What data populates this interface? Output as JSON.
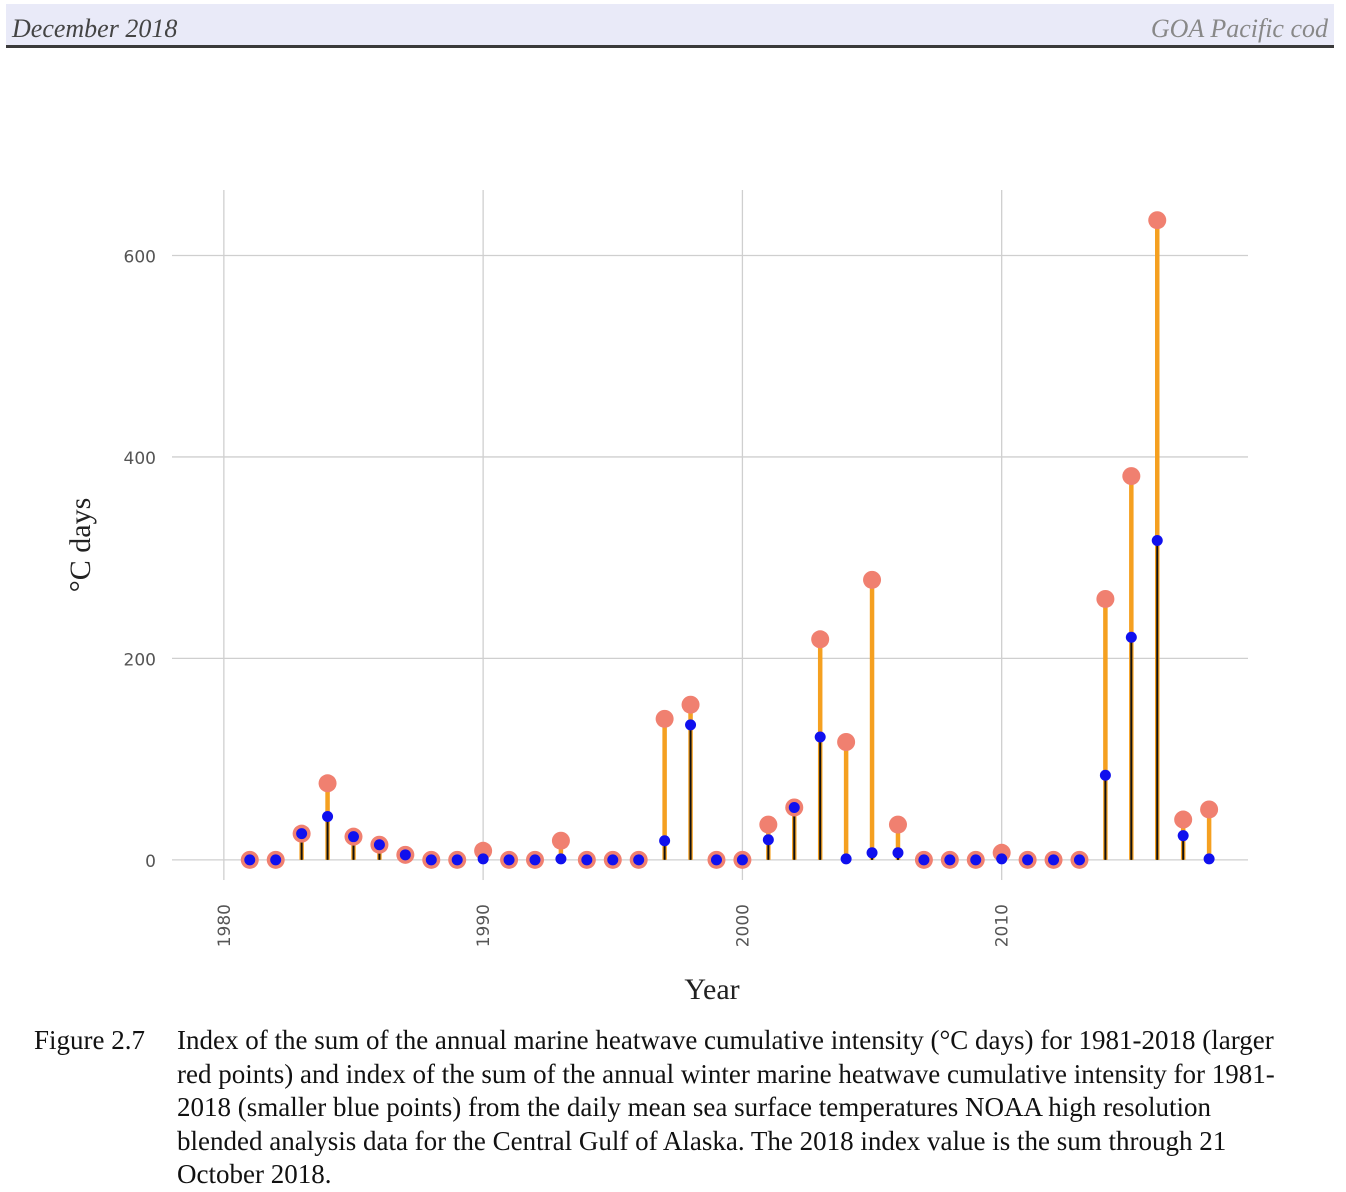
{
  "header": {
    "left": "December 2018",
    "right": "GOA Pacific cod"
  },
  "caption": {
    "label": "Figure 2.7",
    "text": "Index of the sum of the annual marine heatwave cumulative intensity (°C days) for 1981-2018 (larger red points) and index of the sum of the annual winter marine heatwave cumulative intensity for 1981-2018 (smaller blue points) from the daily mean sea surface temperatures NOAA high resolution blended analysis data for the Central Gulf of Alaska. The 2018 index value is the sum through 21 October 2018."
  },
  "chart_data": {
    "type": "lollipop",
    "xlabel": "Year",
    "ylabel": "°C days",
    "xlim": [
      1978,
      2019.5
    ],
    "ylim": [
      -20,
      665
    ],
    "x_ticks": [
      1980,
      1990,
      2000,
      2010
    ],
    "y_ticks": [
      0,
      200,
      400,
      600
    ],
    "grid": true,
    "colors": {
      "annual": "#f08070",
      "winter": "#1010ee",
      "annual_stem": "#f5a020",
      "winter_stem": "#111111"
    },
    "x": [
      1981,
      1982,
      1983,
      1984,
      1985,
      1986,
      1987,
      1988,
      1989,
      1990,
      1991,
      1992,
      1993,
      1994,
      1995,
      1996,
      1997,
      1998,
      1999,
      2000,
      2001,
      2002,
      2003,
      2004,
      2005,
      2006,
      2007,
      2008,
      2009,
      2010,
      2011,
      2012,
      2013,
      2014,
      2015,
      2016,
      2017,
      2018
    ],
    "series": [
      {
        "values": [
          0,
          0,
          26,
          76,
          23,
          15,
          5,
          0,
          0,
          9,
          0,
          0,
          19,
          0,
          0,
          0,
          140,
          154,
          0,
          0,
          35,
          52,
          219,
          117,
          278,
          35,
          0,
          0,
          0,
          7,
          0,
          0,
          0,
          259,
          381,
          635,
          40,
          50
        ]
      },
      {
        "values": [
          0,
          0,
          26,
          43,
          23,
          15,
          5,
          0,
          0,
          1,
          0,
          0,
          1,
          0,
          0,
          0,
          19,
          134,
          0,
          0,
          20,
          52,
          122,
          1,
          7,
          7,
          0,
          0,
          0,
          1,
          0,
          0,
          0,
          84,
          221,
          317,
          24,
          1
        ]
      }
    ]
  }
}
